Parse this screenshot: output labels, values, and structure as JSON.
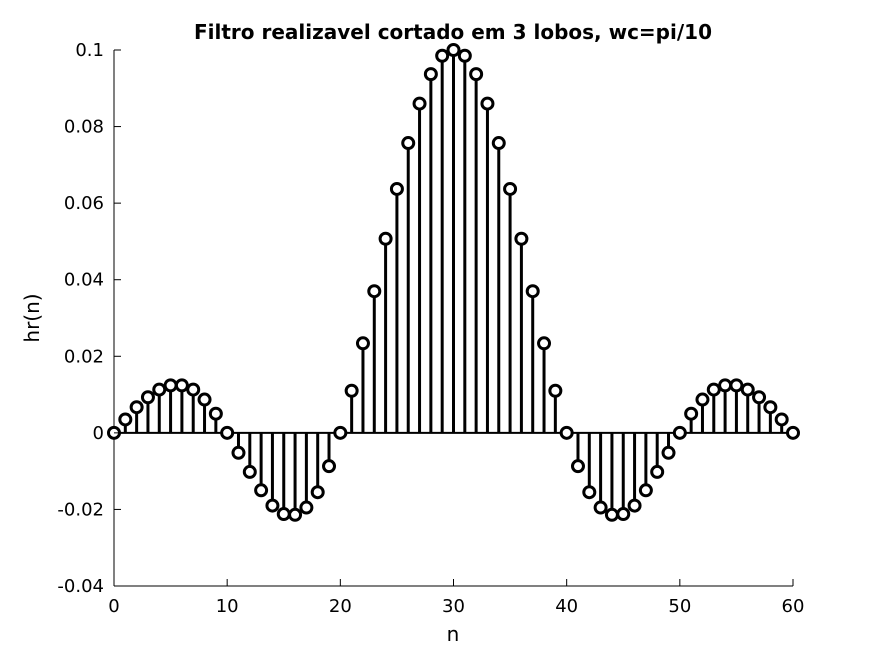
{
  "chart_data": {
    "type": "stem",
    "title": "Filtro realizavel cortado em 3 lobos, wc=pi/10",
    "xlabel": "n",
    "ylabel": "hr(n)",
    "xlim": [
      0,
      60
    ],
    "ylim": [
      -0.04,
      0.1
    ],
    "xticks": [
      "0",
      "10",
      "20",
      "30",
      "40",
      "50",
      "60"
    ],
    "yticks": [
      "-0.04",
      "-0.02",
      "0",
      "0.02",
      "0.04",
      "0.06",
      "0.08",
      "0.1"
    ],
    "ytick_values": [
      -0.04,
      -0.02,
      0,
      0.02,
      0.04,
      0.06,
      0.08,
      0.1
    ],
    "xtick_values": [
      0,
      10,
      20,
      30,
      40,
      50,
      60
    ],
    "grid": false,
    "marker": "circle",
    "color": "#000000",
    "x": [
      0,
      1,
      2,
      3,
      4,
      5,
      6,
      7,
      8,
      9,
      10,
      11,
      12,
      13,
      14,
      15,
      16,
      17,
      18,
      19,
      20,
      21,
      22,
      23,
      24,
      25,
      26,
      27,
      28,
      29,
      30,
      31,
      32,
      33,
      34,
      35,
      36,
      37,
      38,
      39,
      40,
      41,
      42,
      43,
      44,
      45,
      46,
      47,
      48,
      49,
      50,
      51,
      52,
      53,
      54,
      55,
      56,
      57,
      58,
      59,
      60
    ],
    "y": [
      0,
      0.0035,
      0.0067,
      0.0093,
      0.0113,
      0.0124,
      0.0124,
      0.0113,
      0.0087,
      0.005,
      0,
      -0.0052,
      -0.0102,
      -0.015,
      -0.019,
      -0.0212,
      -0.0214,
      -0.0195,
      -0.0155,
      -0.0087,
      0,
      0.011,
      0.0234,
      0.037,
      0.0507,
      0.0637,
      0.0757,
      0.086,
      0.0937,
      0.0985,
      0.1,
      0.0985,
      0.0937,
      0.086,
      0.0757,
      0.0637,
      0.0507,
      0.037,
      0.0234,
      0.011,
      0,
      -0.0087,
      -0.0155,
      -0.0195,
      -0.0214,
      -0.0212,
      -0.019,
      -0.015,
      -0.0102,
      -0.0052,
      0,
      0.005,
      0.0087,
      0.0113,
      0.0124,
      0.0124,
      0.0113,
      0.0093,
      0.0067,
      0.0035,
      0
    ]
  }
}
